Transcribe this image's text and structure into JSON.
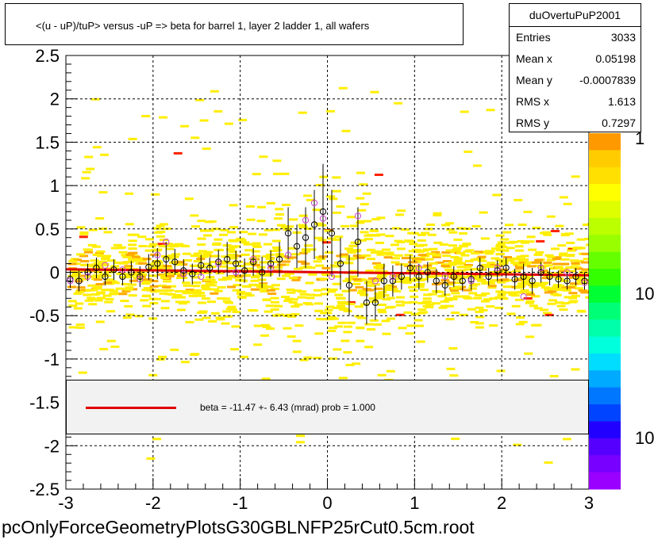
{
  "title": "<(u - uP)/tuP> versus  -uP => beta for barrel 1, layer 2 ladder 1, all wafers",
  "stats": {
    "name": "duOvertuPuP2001",
    "rows": [
      {
        "key": "Entries",
        "value": "3033"
      },
      {
        "key": "Mean x",
        "value": "0.05198"
      },
      {
        "key": "Mean y",
        "value": "-0.0007839"
      },
      {
        "key": "RMS x",
        "value": "1.613"
      },
      {
        "key": "RMS y",
        "value": "0.7297"
      }
    ]
  },
  "fit": {
    "text": "beta =  -11.47 +-  6.43 (mrad) prob = 1.000",
    "line_color": "#e00000"
  },
  "footer": "pcOnlyForceGeometryPlotsG30GBLNFP25rCut0.5cm.root",
  "palette_labels": [
    "1",
    "10",
    "10"
  ],
  "colors": {
    "density": "#ffee00",
    "density_hot": "#ffaa00",
    "density_peak": "#ff2200",
    "fit_line": "#e00000",
    "marker_black": "#000000",
    "marker_magenta": "#cc44cc"
  },
  "chart_data": {
    "type": "scatter",
    "title": "<(u - uP)/tuP> versus  -uP => beta for barrel 1, layer 2 ladder 1, all wafers",
    "xlim": [
      -3,
      3
    ],
    "ylim": [
      -2.5,
      2.5
    ],
    "x_ticks": [
      "-3",
      "-2",
      "-1",
      "0",
      "1",
      "2",
      "3"
    ],
    "y_ticks": [
      "2.5",
      "2",
      "1.5",
      "1",
      "0.5",
      "0",
      "-0.5",
      "-1",
      "-1.5",
      "-2",
      "-2.5"
    ],
    "grid": true,
    "fit": {
      "slope": -0.01147,
      "intercept": 0.0
    },
    "series": [
      {
        "marker": "open-circle-black",
        "points": [
          [
            -2.95,
            -0.08,
            0.1
          ],
          [
            -2.85,
            -0.1,
            0.12
          ],
          [
            -2.75,
            0.0,
            0.1
          ],
          [
            -2.65,
            0.05,
            0.12
          ],
          [
            -2.55,
            -0.05,
            0.1
          ],
          [
            -2.45,
            0.03,
            0.12
          ],
          [
            -2.35,
            -0.05,
            0.1
          ],
          [
            -2.25,
            0.0,
            0.13
          ],
          [
            -2.15,
            -0.05,
            0.12
          ],
          [
            -2.05,
            0.06,
            0.15
          ],
          [
            -1.95,
            0.1,
            0.18
          ],
          [
            -1.85,
            0.15,
            0.2
          ],
          [
            -1.75,
            0.12,
            0.15
          ],
          [
            -1.65,
            0.02,
            0.13
          ],
          [
            -1.55,
            -0.02,
            0.12
          ],
          [
            -1.45,
            0.08,
            0.12
          ],
          [
            -1.35,
            0.05,
            0.12
          ],
          [
            -1.25,
            0.12,
            0.14
          ],
          [
            -1.15,
            0.15,
            0.2
          ],
          [
            -1.05,
            0.1,
            0.15
          ],
          [
            -0.95,
            0.02,
            0.14
          ],
          [
            -0.85,
            0.12,
            0.16
          ],
          [
            -0.75,
            0.0,
            0.18
          ],
          [
            -0.65,
            0.1,
            0.15
          ],
          [
            -0.55,
            0.15,
            0.2
          ],
          [
            -0.45,
            0.45,
            0.3
          ],
          [
            -0.35,
            0.3,
            0.25
          ],
          [
            -0.25,
            0.4,
            0.35
          ],
          [
            -0.15,
            0.55,
            0.4
          ],
          [
            -0.05,
            0.7,
            0.55
          ],
          [
            0.05,
            0.45,
            0.5
          ],
          [
            0.15,
            0.1,
            0.3
          ],
          [
            0.25,
            -0.15,
            0.35
          ],
          [
            0.35,
            0.35,
            0.4
          ],
          [
            0.45,
            -0.35,
            0.25
          ],
          [
            0.55,
            -0.35,
            0.2
          ],
          [
            0.65,
            -0.1,
            0.2
          ],
          [
            0.75,
            -0.1,
            0.18
          ],
          [
            0.85,
            -0.05,
            0.15
          ],
          [
            0.95,
            0.05,
            0.15
          ],
          [
            1.05,
            -0.05,
            0.15
          ],
          [
            1.15,
            0.0,
            0.12
          ],
          [
            1.25,
            -0.1,
            0.14
          ],
          [
            1.35,
            -0.15,
            0.12
          ],
          [
            1.45,
            -0.05,
            0.12
          ],
          [
            1.55,
            -0.1,
            0.12
          ],
          [
            1.65,
            -0.08,
            0.12
          ],
          [
            1.75,
            0.05,
            0.12
          ],
          [
            1.85,
            -0.05,
            0.1
          ],
          [
            1.95,
            0.02,
            0.12
          ],
          [
            2.05,
            0.05,
            0.12
          ],
          [
            2.15,
            -0.08,
            0.12
          ],
          [
            2.25,
            -0.05,
            0.15
          ],
          [
            2.35,
            -0.1,
            0.15
          ],
          [
            2.45,
            0.0,
            0.12
          ],
          [
            2.55,
            -0.05,
            0.1
          ],
          [
            2.65,
            -0.08,
            0.1
          ],
          [
            2.75,
            -0.1,
            0.1
          ],
          [
            2.85,
            -0.05,
            0.1
          ],
          [
            2.95,
            -0.1,
            0.1
          ]
        ]
      },
      {
        "marker": "open-circle-magenta",
        "points": [
          [
            -2.95,
            -0.1
          ],
          [
            -2.75,
            -0.05
          ],
          [
            -2.55,
            0.08
          ],
          [
            -2.35,
            0.03
          ],
          [
            -2.15,
            -0.08
          ],
          [
            -1.95,
            0.2
          ],
          [
            -1.85,
            0.35
          ],
          [
            -1.65,
            -0.02
          ],
          [
            -1.45,
            -0.05
          ],
          [
            -1.25,
            0.1
          ],
          [
            -1.05,
            0.0
          ],
          [
            -0.85,
            0.15
          ],
          [
            -0.65,
            0.05
          ],
          [
            -0.45,
            0.2
          ],
          [
            -0.25,
            0.6
          ],
          [
            -0.15,
            0.8
          ],
          [
            -0.05,
            0.62
          ],
          [
            0.05,
            -0.05
          ],
          [
            0.35,
            0.65
          ],
          [
            0.55,
            -0.1
          ],
          [
            0.75,
            -0.05
          ],
          [
            1.05,
            0.05
          ],
          [
            1.35,
            -0.05
          ],
          [
            1.65,
            -0.1
          ],
          [
            1.95,
            0.05
          ],
          [
            2.25,
            -0.28
          ],
          [
            2.45,
            0.05
          ],
          [
            2.75,
            0.0
          ],
          [
            2.95,
            -0.12
          ]
        ]
      }
    ]
  }
}
